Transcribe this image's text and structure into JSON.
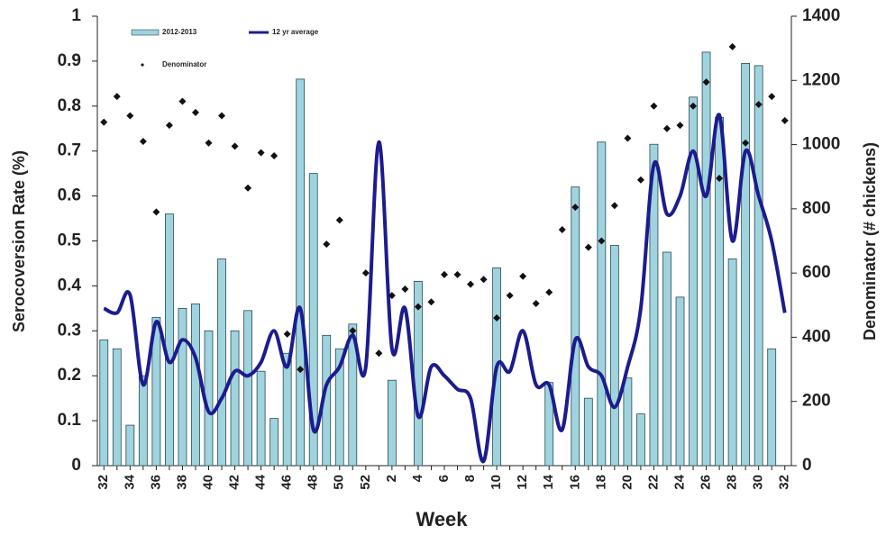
{
  "chart_data": {
    "type": "combo",
    "xlabel": "Week",
    "ylabel": "Serocoversion Rate (%)",
    "y2label": "Denominator (# chickens)",
    "categories": [
      "32",
      null,
      "34",
      null,
      "36",
      null,
      "38",
      null,
      "40",
      null,
      "42",
      null,
      "44",
      null,
      "46",
      null,
      "48",
      null,
      "50",
      null,
      "52",
      null,
      "2",
      null,
      "4",
      null,
      "6",
      null,
      "8",
      null,
      "10",
      null,
      "12",
      null,
      "14",
      null,
      "16",
      null,
      "18",
      null,
      "20",
      null,
      "22",
      null,
      "24",
      null,
      "26",
      null,
      "28",
      null,
      "30",
      null,
      "32"
    ],
    "ylim": [
      0,
      1
    ],
    "yticks": [
      0,
      0.1,
      0.2,
      0.3,
      0.4,
      0.5,
      0.6,
      0.7,
      0.8,
      0.9,
      1
    ],
    "y2lim": [
      0,
      1400
    ],
    "y2ticks": [
      0,
      200,
      400,
      600,
      800,
      1000,
      1200,
      1400
    ],
    "series": [
      {
        "name": "2012-2013",
        "type": "bar",
        "color": "#9fd3de",
        "values": [
          0.28,
          0.26,
          0.09,
          0.2,
          0.33,
          0.56,
          0.35,
          0.36,
          0.3,
          0.46,
          0.3,
          0.345,
          0.21,
          0.105,
          0.25,
          0.86,
          0.65,
          0.29,
          0.26,
          0.315,
          null,
          null,
          0.19,
          null,
          0.41,
          null,
          null,
          null,
          null,
          null,
          0.44,
          null,
          null,
          null,
          0.185,
          null,
          0.62,
          0.15,
          0.72,
          0.49,
          0.195,
          0.115,
          0.715,
          0.475,
          0.375,
          0.82,
          0.92,
          0.775,
          0.46,
          0.895,
          0.89,
          0.26,
          null
        ]
      },
      {
        "name": "12 yr average",
        "type": "line",
        "color": "#1c1c8f",
        "values": [
          0.35,
          0.34,
          0.38,
          0.18,
          0.32,
          0.23,
          0.28,
          0.24,
          0.12,
          0.15,
          0.21,
          0.2,
          0.23,
          0.3,
          0.22,
          0.35,
          0.08,
          0.18,
          0.22,
          0.29,
          0.22,
          0.72,
          0.26,
          0.35,
          0.11,
          0.22,
          0.2,
          0.17,
          0.15,
          0.01,
          0.22,
          0.21,
          0.3,
          0.18,
          0.18,
          0.08,
          0.28,
          0.22,
          0.2,
          0.13,
          0.22,
          0.35,
          0.67,
          0.56,
          0.6,
          0.7,
          0.6,
          0.78,
          0.5,
          0.7,
          0.6,
          0.5,
          0.34
        ]
      },
      {
        "name": "Denominator",
        "type": "scatter",
        "axis": "y2",
        "color": "#111111",
        "values": [
          1070,
          1150,
          1090,
          1010,
          790,
          1060,
          1135,
          1100,
          1005,
          1090,
          995,
          865,
          975,
          965,
          410,
          300,
          null,
          690,
          765,
          420,
          600,
          350,
          530,
          550,
          495,
          510,
          595,
          595,
          565,
          580,
          460,
          530,
          590,
          505,
          540,
          735,
          805,
          680,
          700,
          810,
          1020,
          890,
          1120,
          1050,
          1060,
          1120,
          1195,
          895,
          1305,
          1005,
          1125,
          1150,
          1075
        ]
      }
    ]
  }
}
